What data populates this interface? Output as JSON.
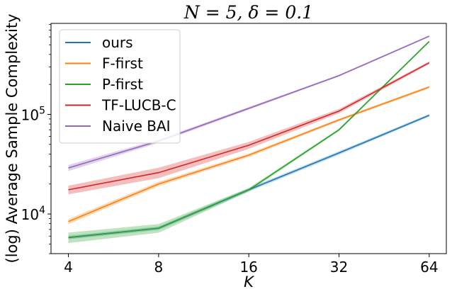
{
  "chart_data": {
    "type": "line",
    "title": "N = 5, δ = 0.1",
    "xlabel": "K",
    "ylabel": "(log) Average Sample Complexity",
    "x_scale": "log2",
    "y_scale": "log",
    "x": [
      4,
      8,
      16,
      32,
      64
    ],
    "x_tick_labels": [
      "4",
      "8",
      "16",
      "32",
      "64"
    ],
    "y_ticks": [
      10000,
      100000
    ],
    "y_tick_labels": [
      "10^4",
      "10^5"
    ],
    "xlim": [
      3.5,
      73
    ],
    "ylim": [
      4000,
      820000
    ],
    "grid": false,
    "legend_position": "top-left",
    "series": [
      {
        "name": "ours",
        "color": "#1f77b4",
        "values": [
          5800,
          7200,
          17500,
          41000,
          98000
        ],
        "band": [
          0.04,
          0.04,
          0.04,
          0.04,
          0.03
        ]
      },
      {
        "name": "F-first",
        "color": "#ff7f0e",
        "values": [
          8400,
          20000,
          39000,
          88000,
          188000
        ],
        "band": [
          0.06,
          0.05,
          0.04,
          0.03,
          0.03
        ]
      },
      {
        "name": "P-first",
        "color": "#2ca02c",
        "values": [
          5800,
          7200,
          17500,
          70000,
          540000
        ],
        "band": [
          0.12,
          0.1,
          0.04,
          0.03,
          0.02
        ]
      },
      {
        "name": "TF-LUCB-C",
        "color": "#d62728",
        "values": [
          17500,
          26000,
          49000,
          108000,
          330000
        ],
        "band": [
          0.1,
          0.12,
          0.08,
          0.05,
          0.03
        ]
      },
      {
        "name": "Naive BAI",
        "color": "#9467bd",
        "values": [
          29000,
          54000,
          115000,
          245000,
          610000
        ],
        "band": [
          0.07,
          0.04,
          0.03,
          0.02,
          0.02
        ]
      }
    ]
  }
}
